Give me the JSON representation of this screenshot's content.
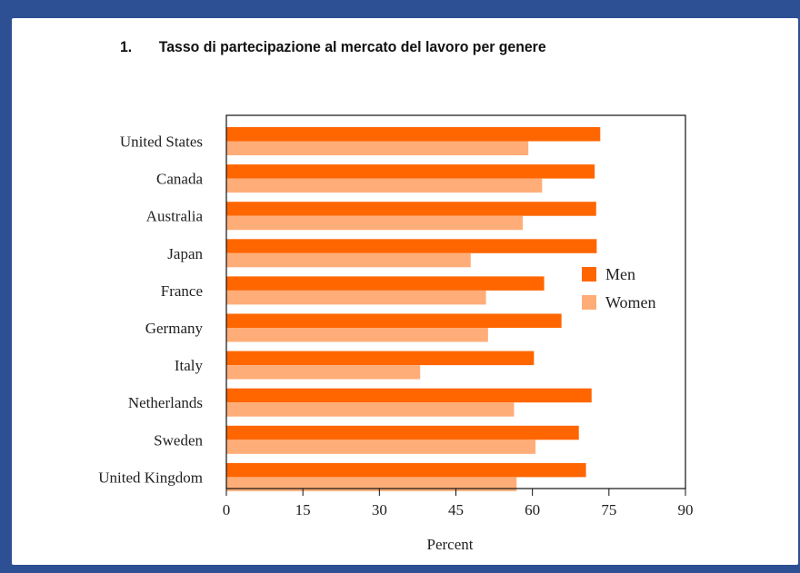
{
  "title_number": "1.",
  "title_text": "Tasso di partecipazione al mercato del lavoro per genere",
  "colors": {
    "frame": "#2d4f94",
    "men": "#ff6600",
    "women": "#ffad78"
  },
  "chart_data": {
    "type": "bar",
    "orientation": "horizontal",
    "categories": [
      "United States",
      "Canada",
      "Australia",
      "Japan",
      "France",
      "Germany",
      "Italy",
      "Netherlands",
      "Sweden",
      "United Kingdom"
    ],
    "series": [
      {
        "name": "Men",
        "color": "#ff6600",
        "values": [
          73.3,
          72.2,
          72.5,
          72.6,
          62.3,
          65.7,
          60.3,
          71.6,
          69.1,
          70.5
        ]
      },
      {
        "name": "Women",
        "color": "#ffad78",
        "values": [
          59.2,
          61.9,
          58.1,
          47.9,
          50.9,
          51.3,
          38.0,
          56.4,
          60.6,
          56.9
        ]
      }
    ],
    "xlabel": "Percent",
    "ylabel": "",
    "xlim": [
      0,
      90
    ],
    "xticks": [
      0,
      15,
      30,
      45,
      60,
      75,
      90
    ],
    "legend": "right",
    "grid": false
  }
}
